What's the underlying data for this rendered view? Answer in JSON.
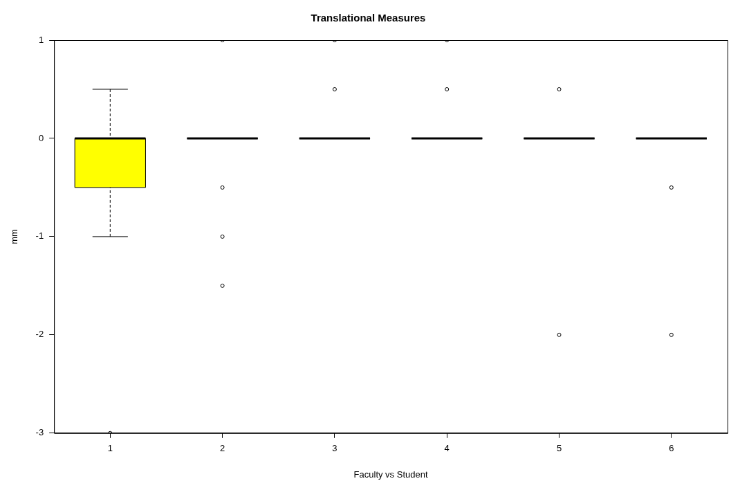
{
  "chart_data": {
    "type": "box",
    "title": "Translational Measures",
    "xlabel": "Faculty vs Student",
    "ylabel": "mm",
    "categories": [
      "1",
      "2",
      "3",
      "4",
      "5",
      "6"
    ],
    "ylim": [
      -3,
      1
    ],
    "yticks": [
      -3,
      -2,
      -1,
      0,
      1
    ],
    "colors": [
      "#ffff00",
      "#000000",
      "#000000",
      "#000000",
      "#000000",
      "#000000"
    ],
    "boxes": [
      {
        "low": -1,
        "q1": -0.5,
        "median": 0,
        "q3": 0,
        "high": 0.5,
        "outliers": [
          -3
        ]
      },
      {
        "low": 0,
        "q1": 0,
        "median": 0,
        "q3": 0,
        "high": 0,
        "outliers": [
          1,
          -0.5,
          -1,
          -1.5
        ]
      },
      {
        "low": 0,
        "q1": 0,
        "median": 0,
        "q3": 0,
        "high": 0,
        "outliers": [
          1,
          0.5
        ]
      },
      {
        "low": 0,
        "q1": 0,
        "median": 0,
        "q3": 0,
        "high": 0,
        "outliers": [
          1,
          0.5
        ]
      },
      {
        "low": 0,
        "q1": 0,
        "median": 0,
        "q3": 0,
        "high": 0,
        "outliers": [
          0.5,
          -2
        ]
      },
      {
        "low": 0,
        "q1": 0,
        "median": 0,
        "q3": 0,
        "high": 0,
        "outliers": [
          -0.5,
          -2
        ]
      }
    ],
    "grid": false,
    "legend": false
  }
}
